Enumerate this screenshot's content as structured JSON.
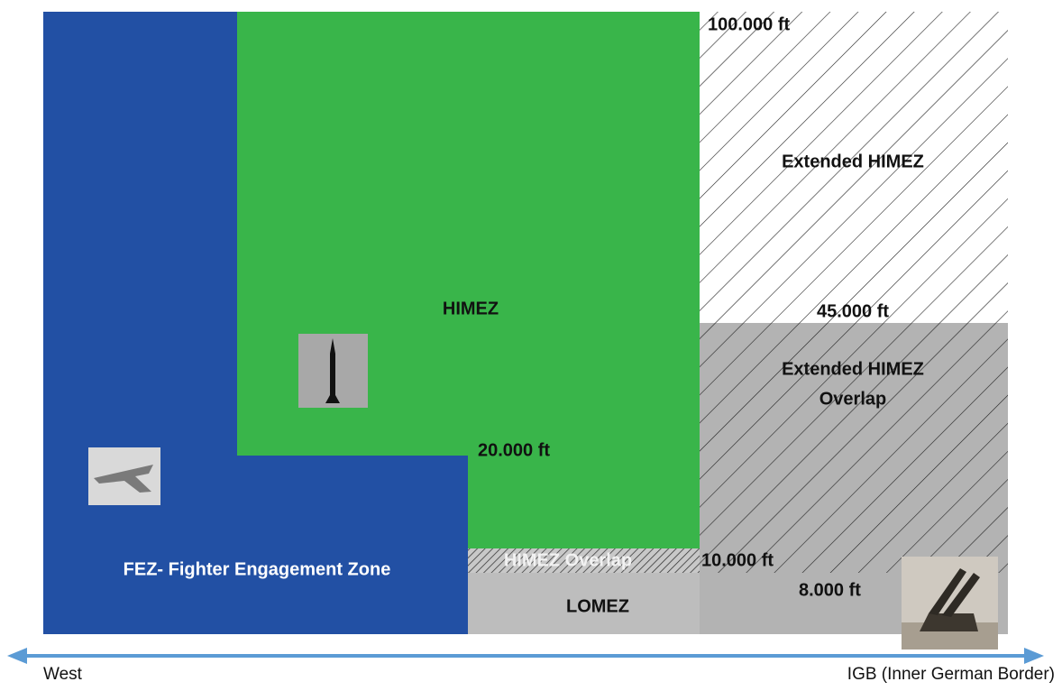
{
  "zones": {
    "fez": "FEZ- Fighter Engagement Zone",
    "himez": "HIMEZ",
    "extended_himez": "Extended HIMEZ",
    "extended_himez_overlap": [
      "Extended HIMEZ",
      "Overlap"
    ],
    "himez_overlap": "HIMEZ Overlap",
    "lomez": "LOMEZ"
  },
  "altitudes": [
    "100.000 ft",
    "45.000 ft",
    "20.000 ft",
    "10.000 ft",
    "8.000 ft"
  ],
  "axis": {
    "left": "West",
    "right": "IGB (Inner German Border)"
  }
}
